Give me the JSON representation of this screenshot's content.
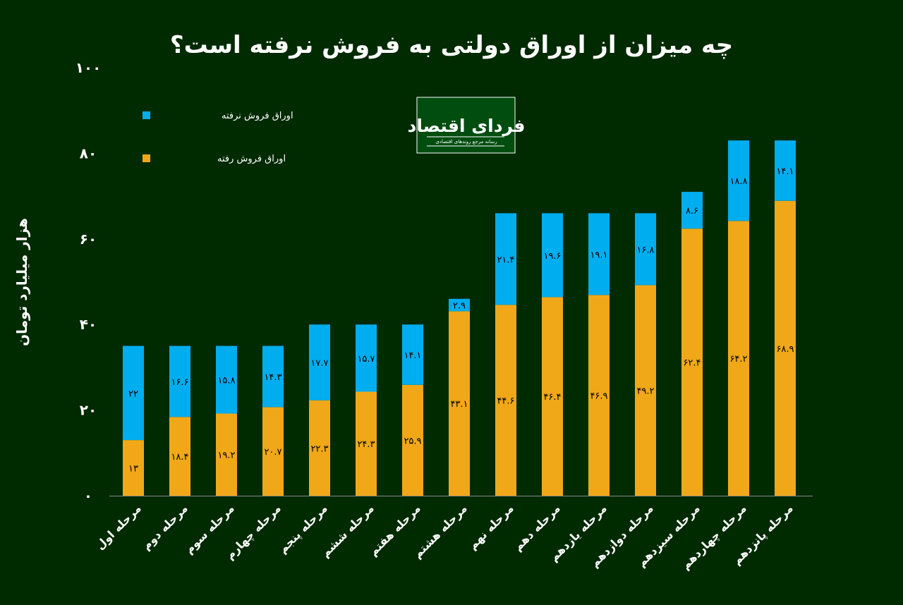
{
  "chart_data": {
    "type": "bar",
    "stacked": true,
    "title": "چه میزان از اوراق دولتی به فروش نرفته است؟",
    "ylabel": "هزار میلیارد تومان",
    "xlabel": "",
    "ylim": [
      0,
      100
    ],
    "yticks": [
      0,
      20,
      40,
      60,
      80,
      100
    ],
    "grid": false,
    "legend_placement": "top-left",
    "categories": [
      "مرحله اول",
      "مرحله دوم",
      "مرحله سوم",
      "مرحله چهارم",
      "مرحله پنجم",
      "مرحله ششم",
      "مرحله هفتم",
      "مرحله هشتم",
      "مرحله نهم",
      "مرحله دهم",
      "مرحله یازدهم",
      "مرحله دوازدهم",
      "مرحله سیزدهم",
      "مرحله چهاردهم",
      "مرحله پانزدهم"
    ],
    "series": [
      {
        "name": "اوراق فروش رفته",
        "color": "#f0a818",
        "values": [
          13,
          18.4,
          19.2,
          20.7,
          22.3,
          24.3,
          25.9,
          43.1,
          44.6,
          46.4,
          46.9,
          49.2,
          62.4,
          64.2,
          68.9
        ]
      },
      {
        "name": "اوراق فروش نرفته",
        "color": "#00adee",
        "values": [
          22,
          16.6,
          15.8,
          14.3,
          17.7,
          15.7,
          14.1,
          2.9,
          21.4,
          19.6,
          19.1,
          16.8,
          8.6,
          18.8,
          14.1
        ]
      }
    ],
    "digits": "persian"
  },
  "logo": {
    "name": "فردای اقتصاد",
    "tagline": "رسانه مرجع روندهای اقتصادی"
  },
  "colors": {
    "background": "#002a00"
  }
}
